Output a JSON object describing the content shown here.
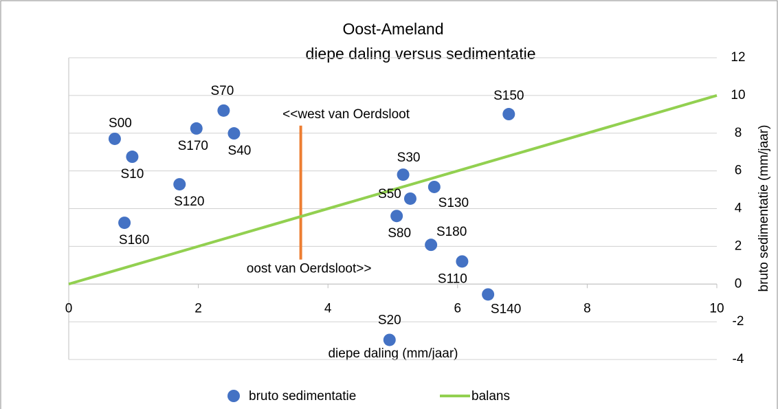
{
  "chart_data": {
    "type": "scatter",
    "title": "Oost-Ameland",
    "subtitle": "diepe daling versus sedimentatie",
    "x_label": "diepe daling (mm/jaar)",
    "y_label": "bruto sedimentatie (mm/jaar)",
    "xlim": [
      0,
      10
    ],
    "xticks": [
      0,
      2,
      4,
      6,
      8,
      10
    ],
    "ylim": [
      -4,
      12
    ],
    "yticks": [
      -4,
      -2,
      0,
      2,
      4,
      6,
      8,
      10,
      12
    ],
    "grid": true,
    "legend": "bottom",
    "series": [
      {
        "name": "bruto sedimentatie",
        "color": "#4472c4",
        "labels": [
          "S00",
          "S10",
          "S120",
          "S160",
          "S170",
          "S70",
          "S40",
          "S150",
          "S30",
          "S130",
          "S50",
          "S80",
          "S180",
          "S110",
          "S140",
          "S20"
        ],
        "x": [
          0.71,
          0.98,
          1.71,
          0.86,
          1.97,
          2.39,
          2.55,
          6.79,
          5.16,
          5.64,
          5.27,
          5.06,
          5.59,
          6.07,
          6.47,
          4.95
        ],
        "values": [
          7.7,
          6.75,
          5.29,
          3.25,
          8.25,
          9.2,
          7.99,
          9.01,
          5.8,
          5.15,
          4.53,
          3.61,
          2.08,
          1.2,
          -0.55,
          -2.96
        ]
      },
      {
        "name": "balans",
        "type": "line",
        "color": "#92d050",
        "x": [
          0,
          10
        ],
        "values": [
          0,
          10
        ]
      }
    ],
    "divider": {
      "x": [
        3.58,
        3.58
      ],
      "values": [
        8.4,
        1.3
      ],
      "color": "#ed7d31",
      "annotations": [
        "<<west van Oerdsloot",
        "oost van Oerdsloot>>"
      ]
    }
  }
}
